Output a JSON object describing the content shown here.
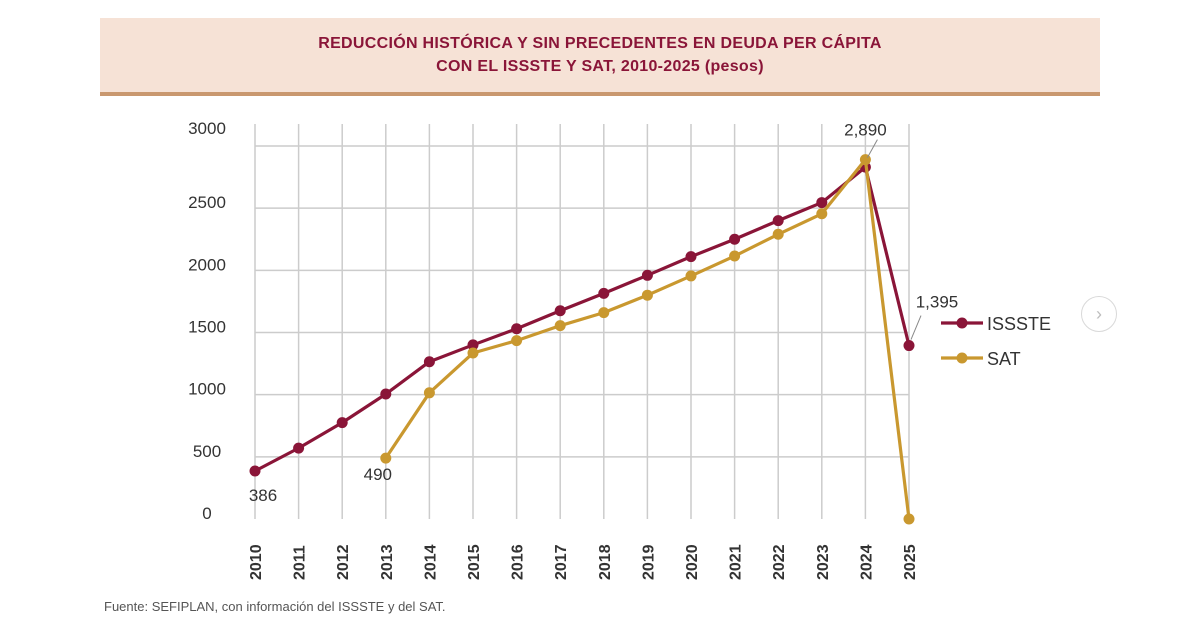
{
  "title": {
    "line1": "REDUCCIÓN HISTÓRICA Y SIN PRECEDENTES EN DEUDA PER CÁPITA",
    "line2": "CON EL ISSSTE Y SAT, 2010-2025 (pesos)"
  },
  "source": "Fuente: SEFIPLAN, con información del ISSSTE y del SAT.",
  "nav": {
    "next_icon": "chevron-right-icon",
    "next_glyph": "›"
  },
  "colors": {
    "issste": "#8a1538",
    "sat": "#c9982f",
    "grid": "#cccccc",
    "text": "#333333"
  },
  "chart_data": {
    "type": "line",
    "title": "REDUCCIÓN HISTÓRICA Y SIN PRECEDENTES EN DEUDA PER CÁPITA CON EL ISSSTE Y SAT, 2010-2025 (pesos)",
    "xlabel": "",
    "ylabel": "",
    "x": [
      "2010",
      "2011",
      "2012",
      "2013",
      "2014",
      "2015",
      "2016",
      "2017",
      "2018",
      "2019",
      "2020",
      "2021",
      "2022",
      "2023",
      "2024",
      "2025"
    ],
    "yticks": [
      "0",
      "500",
      "1000",
      "1500",
      "2000",
      "2500",
      "3000"
    ],
    "ylim": [
      0,
      3000
    ],
    "grid": true,
    "legend_position": "right",
    "series": [
      {
        "name": "ISSSTE",
        "values": [
          386,
          570,
          775,
          1005,
          1265,
          1400,
          1530,
          1675,
          1815,
          1960,
          2110,
          2250,
          2400,
          2545,
          2830,
          1395
        ]
      },
      {
        "name": "SAT",
        "values": [
          null,
          null,
          null,
          490,
          1015,
          1335,
          1435,
          1555,
          1660,
          1800,
          1955,
          2115,
          2290,
          2455,
          2890,
          0
        ]
      }
    ],
    "annotations": [
      {
        "series": "ISSSTE",
        "x": "2010",
        "label": "386"
      },
      {
        "series": "SAT",
        "x": "2013",
        "label": "490"
      },
      {
        "series": "SAT",
        "x": "2024",
        "label": "2,890"
      },
      {
        "series": "ISSSTE",
        "x": "2025",
        "label": "1,395"
      }
    ]
  }
}
